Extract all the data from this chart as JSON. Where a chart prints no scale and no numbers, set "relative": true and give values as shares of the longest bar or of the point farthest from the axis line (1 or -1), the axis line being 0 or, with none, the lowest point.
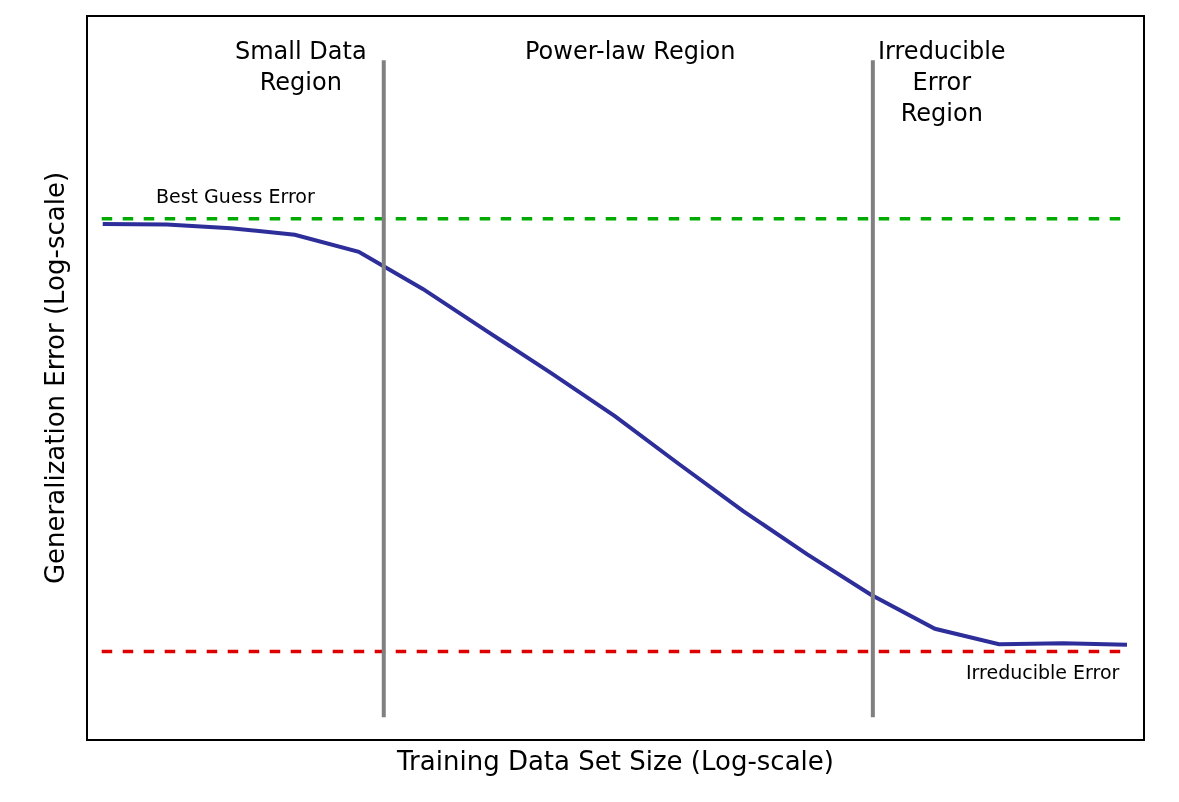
{
  "chart_data": {
    "type": "line",
    "relative": true,
    "xlabel": "Training Data Set Size (Log-scale)",
    "ylabel": "Generalization Error (Log-scale)",
    "categories": [
      null,
      null,
      null,
      null,
      null,
      null,
      null,
      null,
      null,
      null,
      null,
      null,
      null,
      null,
      null,
      null,
      null
    ],
    "series": [
      {
        "color": "#2e2e9a",
        "values": [
          1.0,
          0.999,
          0.992,
          0.979,
          0.946,
          0.874,
          0.792,
          0.711,
          0.627,
          0.534,
          0.443,
          0.359,
          0.28,
          0.214,
          0.184,
          0.186,
          0.183
        ]
      }
    ],
    "ref_lines": [
      {
        "axis": "y",
        "value": 1.01,
        "label": "Best Guess Error",
        "color": "#00aa00",
        "line_style": "dashed"
      },
      {
        "axis": "y",
        "value": 0.17,
        "label": "Irreducible Error",
        "color": "#dd0000",
        "line_style": "dashed"
      }
    ],
    "annotations": [
      "Small Data\nRegion",
      "Power-law Region",
      "Irreducible\nError\nRegion"
    ],
    "marker": "none",
    "line_style": "solid"
  }
}
